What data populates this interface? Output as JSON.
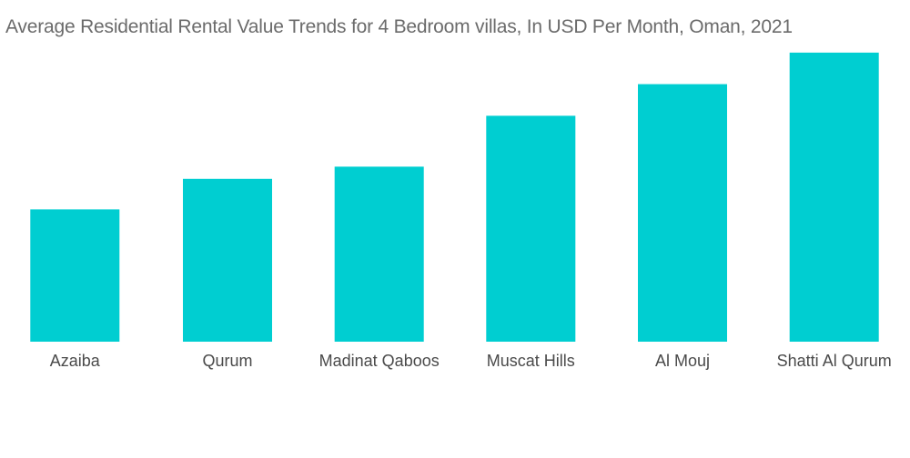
{
  "chart_data": {
    "type": "bar",
    "title": "Average Residential Rental Value Trends for 4 Bedroom villas, In USD Per Month, Oman, 2021",
    "xlabel": "",
    "ylabel": "",
    "categories": [
      "Azaiba",
      "Qurum",
      "Madinat Qaboos",
      "Muscat Hills",
      "Al Mouj",
      "Shatti Al Qurum"
    ],
    "values": [
      1300,
      1600,
      1720,
      2220,
      2530,
      2840
    ],
    "ylim": [
      0,
      3000
    ],
    "grid": false,
    "legend": "none",
    "bar_color": "#00CED1"
  }
}
